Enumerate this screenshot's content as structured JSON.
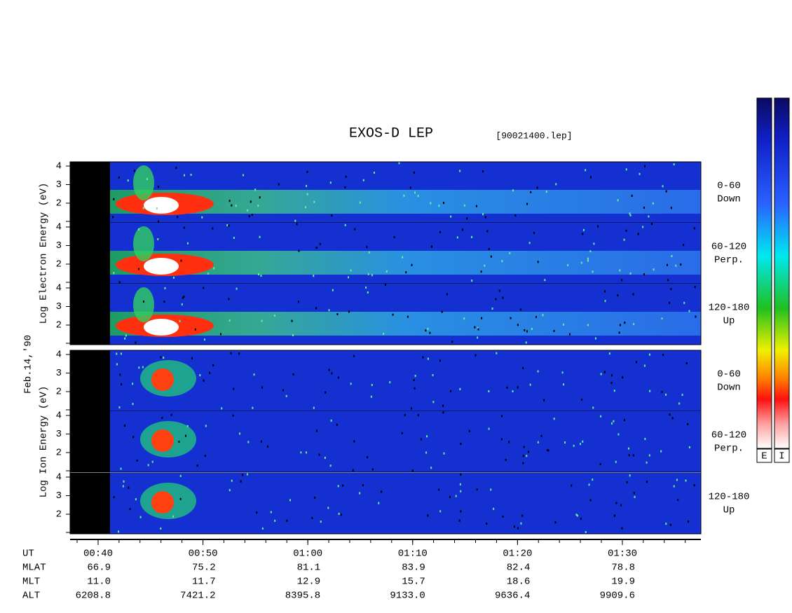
{
  "title": "EXOS-D LEP",
  "file": "[90021400.lep]",
  "date": "Feb.14,'90",
  "groups": [
    {
      "label": "Log Electron Energy (eV)",
      "panels": [
        {
          "range": "0-60",
          "dir": "Down"
        },
        {
          "range": "60-120",
          "dir": "Perp."
        },
        {
          "range": "120-180",
          "dir": "Up"
        }
      ]
    },
    {
      "label": "Log Ion Energy (eV)",
      "panels": [
        {
          "range": "0-60",
          "dir": "Down"
        },
        {
          "range": "60-120",
          "dir": "Perp."
        },
        {
          "range": "120-180",
          "dir": "Up"
        }
      ]
    }
  ],
  "yticks": [
    4,
    3,
    2
  ],
  "colorbars": [
    "E",
    "I"
  ],
  "orbit": {
    "rows": [
      {
        "name": "UT",
        "values": [
          "00:40",
          "00:50",
          "01:00",
          "01:10",
          "01:20",
          "01:30"
        ]
      },
      {
        "name": "MLAT",
        "values": [
          "66.9",
          "75.2",
          "81.1",
          "83.9",
          "82.4",
          "78.8"
        ]
      },
      {
        "name": "MLT",
        "values": [
          "11.0",
          "11.7",
          "12.9",
          "15.7",
          "18.6",
          "19.9"
        ]
      },
      {
        "name": "ALT",
        "values": [
          "6208.8",
          "7421.2",
          "8395.8",
          "9133.0",
          "9636.4",
          "9909.6"
        ]
      }
    ]
  }
}
